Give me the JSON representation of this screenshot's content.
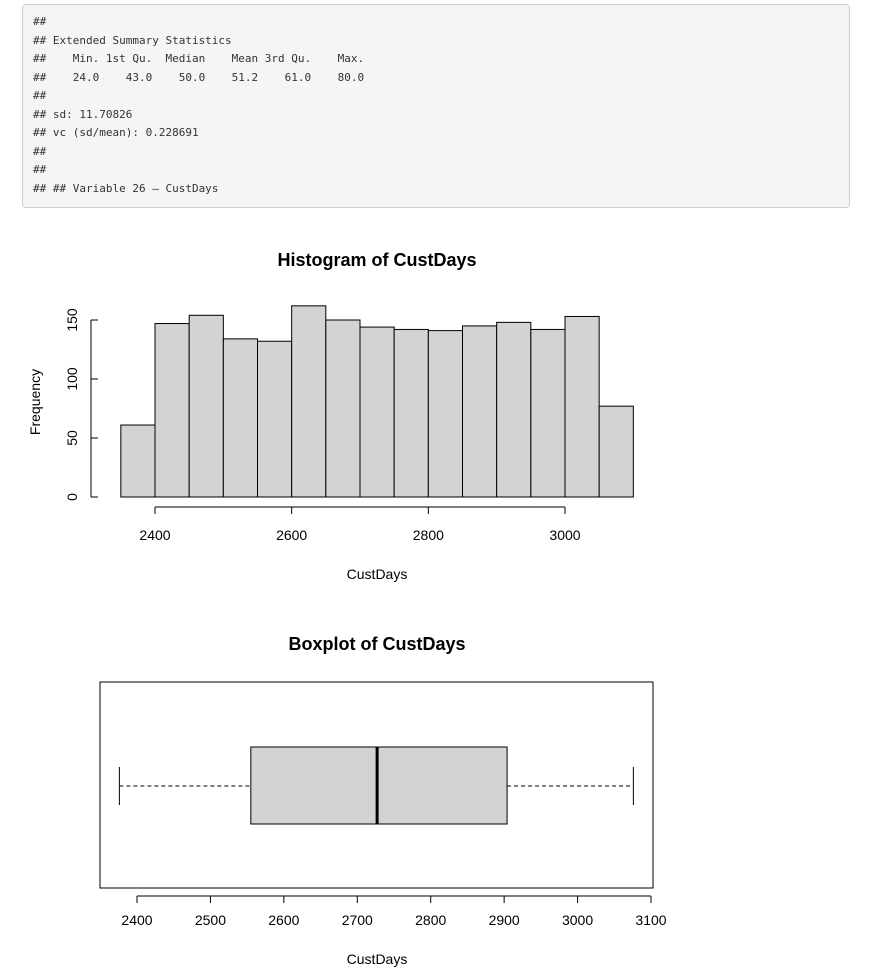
{
  "console": {
    "lines": [
      "##",
      "## Extended Summary Statistics",
      "##    Min. 1st Qu.  Median    Mean 3rd Qu.    Max.",
      "##    24.0    43.0    50.0    51.2    61.0    80.0",
      "##",
      "## sd: 11.70826",
      "## vc (sd/mean): 0.228691",
      "##",
      "##",
      "## ## Variable 26 — CustDays"
    ]
  },
  "chart_data": [
    {
      "type": "bar",
      "title": "Histogram of CustDays",
      "xlabel": "CustDays",
      "ylabel": "Frequency",
      "bin_edges": [
        2350,
        2400,
        2450,
        2500,
        2550,
        2600,
        2650,
        2700,
        2750,
        2800,
        2850,
        2900,
        2950,
        3000,
        3050,
        3100
      ],
      "values": [
        61,
        147,
        154,
        134,
        132,
        162,
        150,
        144,
        142,
        141,
        145,
        148,
        142,
        153,
        77
      ],
      "xticks": [
        2400,
        2600,
        2800,
        3000
      ],
      "yticks": [
        0,
        50,
        100,
        150
      ],
      "bar_color": "#d3d3d3"
    },
    {
      "type": "boxplot",
      "title": "Boxplot of CustDays",
      "xlabel": "CustDays",
      "min": 2376,
      "q1": 2555,
      "median": 2727,
      "q3": 2904,
      "max": 3076,
      "xticks": [
        2400,
        2500,
        2600,
        2700,
        2800,
        2900,
        3000,
        3100
      ],
      "box_color": "#d3d3d3"
    }
  ]
}
